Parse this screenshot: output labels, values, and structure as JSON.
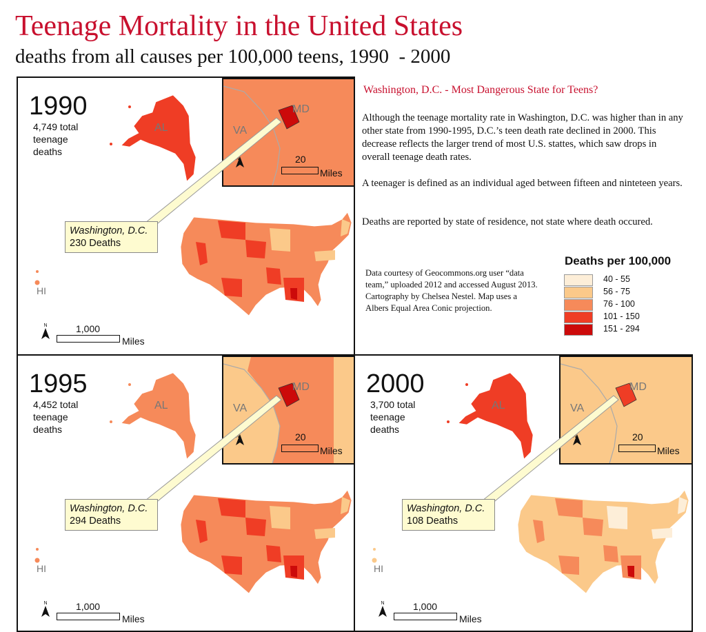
{
  "title": "Teenage Mortality in the United States",
  "subtitle": "deaths from all causes per 100,000 teens, 1990  - 2000",
  "colors": {
    "accent": "#c8102e",
    "callout_bg": "#fefbd0",
    "classes": [
      "#fdeed8",
      "#fbc98a",
      "#f68a5a",
      "#ef3d25",
      "#cc0a0a"
    ]
  },
  "panels": [
    {
      "year": "1990",
      "total": "4,749 total teenage deaths",
      "callout_place": "Washington, D.C.",
      "callout_deaths": "230 Deaths",
      "dc_class": 4,
      "inset_va_class": 2,
      "inset_md_class": 2,
      "base_class": 2,
      "hot_states_class": 3,
      "light_states_class": 1,
      "alaska_class": 3
    },
    {
      "year": "1995",
      "total": "4,452 total teenage deaths",
      "callout_place": "Washington, D.C.",
      "callout_deaths": "294 Deaths",
      "dc_class": 4,
      "inset_va_class": 1,
      "inset_md_class": 2,
      "base_class": 2,
      "hot_states_class": 3,
      "light_states_class": 1,
      "alaska_class": 2
    },
    {
      "year": "2000",
      "total": "3,700 total teenage deaths",
      "callout_place": "Washington, D.C.",
      "callout_deaths": "108 Deaths",
      "dc_class": 3,
      "inset_va_class": 1,
      "inset_md_class": 1,
      "base_class": 1,
      "hot_states_class": 2,
      "light_states_class": 0,
      "alaska_class": 3
    }
  ],
  "labels": {
    "alaska": "AL",
    "hawaii": "HI",
    "virginia": "VA",
    "maryland": "MD",
    "north": "N",
    "inset_scale_value": "20",
    "inset_scale_unit": "Miles",
    "map_scale_value": "1,000",
    "map_scale_unit": "Miles"
  },
  "side": {
    "heading": "Washington, D.C. - Most Dangerous State for Teens?",
    "paragraphs": [
      "Although the teenage mortality rate in Washington, D.C. was higher than in any other state from 1990-1995,  D.C.’s teen death rate declined in 2000. This decrease reflects the larger trend of most U.S. stattes, which saw drops in overall teenage death rates.",
      "A teenager is defined as an individual aged between fifteen and ninteteen years.",
      "Deaths are reported by state of residence, not state where death occured."
    ],
    "credit": "Data courtesy of Geocommons.org user “data team,” uploaded 2012 and accessed August 2013. Cartography by Chelsea Nestel. Map uses a Albers Equal Area Conic projection."
  },
  "legend": {
    "title": "Deaths per 100,000",
    "items": [
      {
        "label": "40 - 55",
        "color": "#fdeed8"
      },
      {
        "label": "56 - 75",
        "color": "#fbc98a"
      },
      {
        "label": "76 - 100",
        "color": "#f68a5a"
      },
      {
        "label": "101 - 150",
        "color": "#ef3d25"
      },
      {
        "label": "151 - 294",
        "color": "#cc0a0a"
      }
    ]
  }
}
